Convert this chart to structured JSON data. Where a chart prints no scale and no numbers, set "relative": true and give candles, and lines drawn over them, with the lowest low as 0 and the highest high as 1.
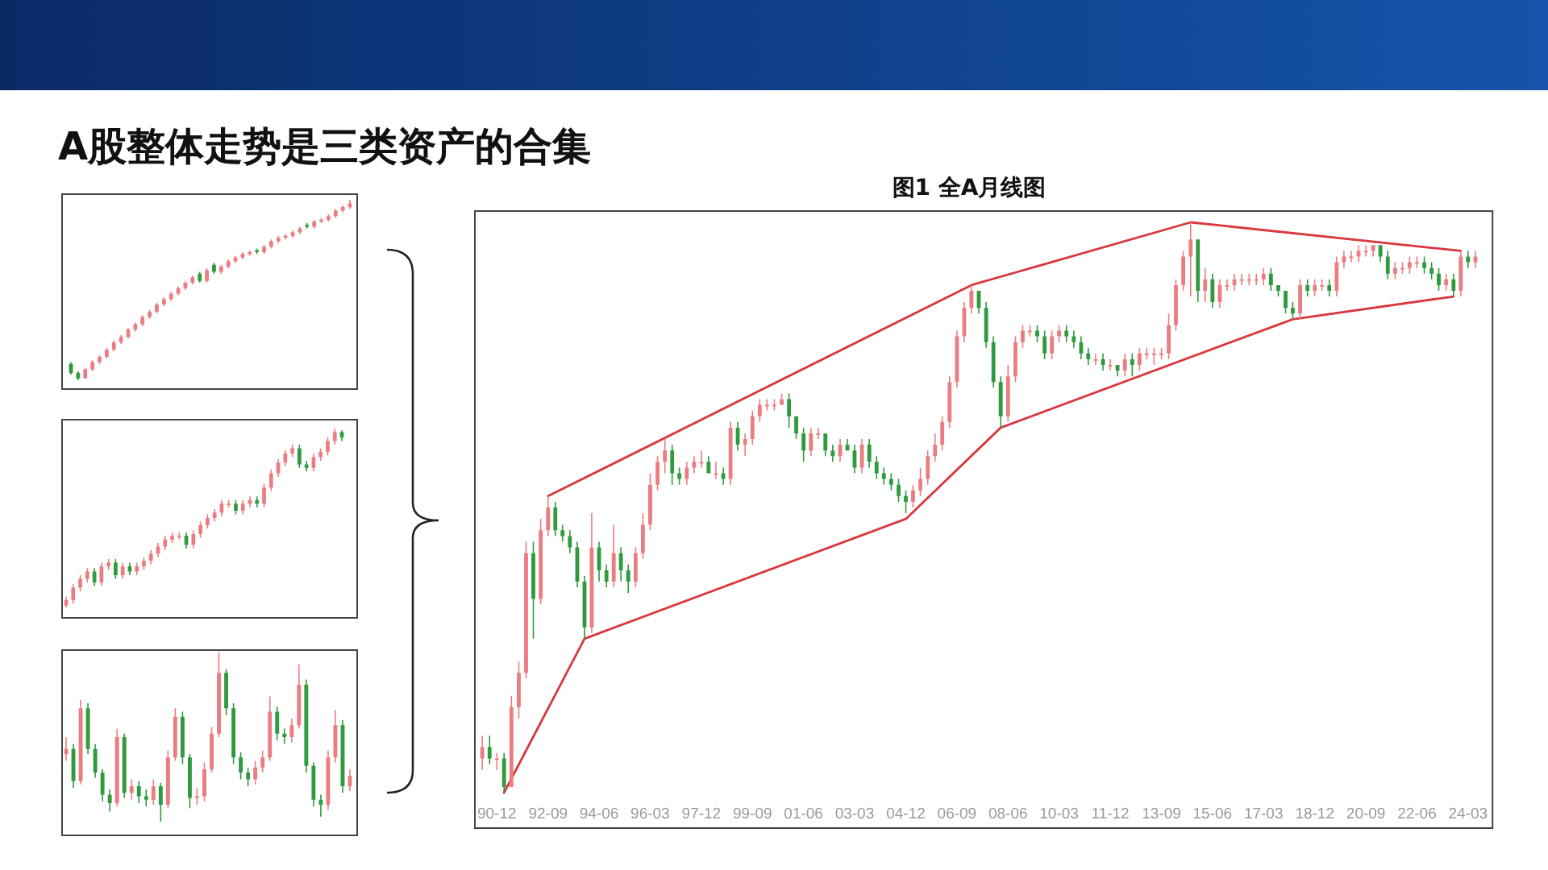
{
  "chart_data": [
    {
      "type": "candlestick",
      "title": "A股整体走势是三类资产的合集",
      "relative": true,
      "categories": [
        null,
        null,
        null,
        null,
        null,
        null,
        null,
        null,
        null,
        null,
        null,
        null,
        null,
        null,
        null,
        null,
        null,
        null,
        null,
        null,
        null,
        null,
        null,
        null,
        null,
        null,
        null,
        null,
        null,
        null,
        null,
        null,
        null,
        null,
        null,
        null,
        null,
        null,
        null,
        null
      ],
      "ohlc": [
        [
          0.09,
          0.1,
          0.03,
          0.04
        ],
        [
          0.04,
          0.05,
          0,
          0.01
        ],
        [
          0.01,
          0.07,
          0.01,
          0.06
        ],
        [
          0.06,
          0.11,
          0.05,
          0.1
        ],
        [
          0.1,
          0.14,
          0.09,
          0.13
        ],
        [
          0.13,
          0.18,
          0.12,
          0.17
        ],
        [
          0.17,
          0.22,
          0.16,
          0.21
        ],
        [
          0.21,
          0.25,
          0.2,
          0.24
        ],
        [
          0.24,
          0.29,
          0.23,
          0.28
        ],
        [
          0.28,
          0.32,
          0.27,
          0.31
        ],
        [
          0.31,
          0.36,
          0.3,
          0.35
        ],
        [
          0.35,
          0.39,
          0.34,
          0.38
        ],
        [
          0.38,
          0.43,
          0.37,
          0.42
        ],
        [
          0.42,
          0.46,
          0.41,
          0.45
        ],
        [
          0.45,
          0.49,
          0.44,
          0.48
        ],
        [
          0.48,
          0.52,
          0.47,
          0.51
        ],
        [
          0.51,
          0.55,
          0.5,
          0.54
        ],
        [
          0.54,
          0.58,
          0.53,
          0.57
        ],
        [
          0.59,
          0.6,
          0.54,
          0.55
        ],
        [
          0.55,
          0.62,
          0.54,
          0.61
        ],
        [
          0.64,
          0.65,
          0.59,
          0.6
        ],
        [
          0.6,
          0.64,
          0.59,
          0.63
        ],
        [
          0.63,
          0.67,
          0.62,
          0.66
        ],
        [
          0.66,
          0.69,
          0.65,
          0.68
        ],
        [
          0.68,
          0.71,
          0.67,
          0.7
        ],
        [
          0.7,
          0.72,
          0.69,
          0.71
        ],
        [
          0.72,
          0.73,
          0.7,
          0.71
        ],
        [
          0.71,
          0.75,
          0.7,
          0.74
        ],
        [
          0.74,
          0.78,
          0.73,
          0.77
        ],
        [
          0.77,
          0.8,
          0.76,
          0.79
        ],
        [
          0.79,
          0.81,
          0.78,
          0.8
        ],
        [
          0.8,
          0.83,
          0.79,
          0.82
        ],
        [
          0.82,
          0.85,
          0.81,
          0.84
        ],
        [
          0.86,
          0.87,
          0.84,
          0.85
        ],
        [
          0.85,
          0.89,
          0.84,
          0.88
        ],
        [
          0.88,
          0.9,
          0.87,
          0.89
        ],
        [
          0.89,
          0.92,
          0.88,
          0.91
        ],
        [
          0.91,
          0.95,
          0.9,
          0.94
        ],
        [
          0.94,
          0.97,
          0.93,
          0.96
        ],
        [
          0.96,
          1,
          0.95,
          0.98
        ]
      ]
    },
    {
      "type": "candlestick",
      "relative": true,
      "categories": [
        null,
        null,
        null,
        null,
        null,
        null,
        null,
        null,
        null,
        null,
        null,
        null,
        null,
        null,
        null,
        null,
        null,
        null,
        null,
        null,
        null,
        null,
        null,
        null,
        null,
        null,
        null,
        null,
        null,
        null,
        null,
        null,
        null,
        null,
        null,
        null,
        null,
        null,
        null,
        null
      ],
      "ohlc": [
        [
          0.01,
          0.06,
          0,
          0.04
        ],
        [
          0.04,
          0.13,
          0.02,
          0.11
        ],
        [
          0.11,
          0.18,
          0.09,
          0.16
        ],
        [
          0.16,
          0.22,
          0.14,
          0.2
        ],
        [
          0.2,
          0.22,
          0.12,
          0.14
        ],
        [
          0.14,
          0.25,
          0.12,
          0.23
        ],
        [
          0.23,
          0.27,
          0.21,
          0.25
        ],
        [
          0.25,
          0.27,
          0.16,
          0.18
        ],
        [
          0.18,
          0.25,
          0.16,
          0.23
        ],
        [
          0.23,
          0.25,
          0.18,
          0.2
        ],
        [
          0.2,
          0.25,
          0.18,
          0.23
        ],
        [
          0.23,
          0.28,
          0.21,
          0.26
        ],
        [
          0.26,
          0.32,
          0.24,
          0.3
        ],
        [
          0.3,
          0.36,
          0.28,
          0.34
        ],
        [
          0.34,
          0.4,
          0.32,
          0.38
        ],
        [
          0.38,
          0.42,
          0.36,
          0.4
        ],
        [
          0.4,
          0.42,
          0.38,
          0.4
        ],
        [
          0.4,
          0.42,
          0.33,
          0.35
        ],
        [
          0.35,
          0.43,
          0.33,
          0.41
        ],
        [
          0.41,
          0.48,
          0.39,
          0.46
        ],
        [
          0.46,
          0.52,
          0.44,
          0.5
        ],
        [
          0.5,
          0.55,
          0.48,
          0.53
        ],
        [
          0.53,
          0.6,
          0.51,
          0.58
        ],
        [
          0.58,
          0.6,
          0.56,
          0.58
        ],
        [
          0.58,
          0.6,
          0.52,
          0.54
        ],
        [
          0.54,
          0.6,
          0.52,
          0.58
        ],
        [
          0.58,
          0.62,
          0.56,
          0.6
        ],
        [
          0.6,
          0.62,
          0.56,
          0.58
        ],
        [
          0.58,
          0.69,
          0.56,
          0.67
        ],
        [
          0.67,
          0.77,
          0.65,
          0.75
        ],
        [
          0.75,
          0.83,
          0.73,
          0.81
        ],
        [
          0.81,
          0.88,
          0.79,
          0.86
        ],
        [
          0.86,
          0.91,
          0.84,
          0.89
        ],
        [
          0.89,
          0.91,
          0.78,
          0.8
        ],
        [
          0.8,
          0.82,
          0.76,
          0.78
        ],
        [
          0.78,
          0.86,
          0.76,
          0.84
        ],
        [
          0.84,
          0.89,
          0.82,
          0.87
        ],
        [
          0.87,
          0.95,
          0.85,
          0.93
        ],
        [
          0.93,
          1,
          0.91,
          0.98
        ],
        [
          0.98,
          0.99,
          0.93,
          0.95
        ]
      ]
    },
    {
      "type": "candlestick",
      "relative": true,
      "categories": [
        null,
        null,
        null,
        null,
        null,
        null,
        null,
        null,
        null,
        null,
        null,
        null,
        null,
        null,
        null,
        null,
        null,
        null,
        null,
        null,
        null,
        null,
        null,
        null,
        null,
        null,
        null,
        null,
        null,
        null,
        null,
        null,
        null,
        null,
        null,
        null,
        null,
        null,
        null,
        null
      ],
      "ohlc": [
        [
          0.4,
          0.5,
          0.36,
          0.43
        ],
        [
          0.43,
          0.46,
          0.2,
          0.24
        ],
        [
          0.24,
          0.72,
          0.22,
          0.67
        ],
        [
          0.67,
          0.7,
          0.4,
          0.43
        ],
        [
          0.43,
          0.46,
          0.26,
          0.29
        ],
        [
          0.29,
          0.31,
          0.12,
          0.16
        ],
        [
          0.16,
          0.19,
          0.06,
          0.11
        ],
        [
          0.11,
          0.55,
          0.09,
          0.5
        ],
        [
          0.5,
          0.52,
          0.14,
          0.17
        ],
        [
          0.17,
          0.25,
          0.13,
          0.21
        ],
        [
          0.21,
          0.24,
          0.11,
          0.15
        ],
        [
          0.15,
          0.19,
          0.09,
          0.13
        ],
        [
          0.13,
          0.25,
          0.1,
          0.21
        ],
        [
          0.21,
          0.23,
          0,
          0.1
        ],
        [
          0.1,
          0.42,
          0.08,
          0.38
        ],
        [
          0.38,
          0.67,
          0.36,
          0.62
        ],
        [
          0.62,
          0.65,
          0.34,
          0.38
        ],
        [
          0.38,
          0.4,
          0.08,
          0.14
        ],
        [
          0.14,
          0.2,
          0.1,
          0.15
        ],
        [
          0.15,
          0.35,
          0.12,
          0.31
        ],
        [
          0.31,
          0.56,
          0.29,
          0.52
        ],
        [
          0.52,
          1,
          0.5,
          0.88
        ],
        [
          0.88,
          0.9,
          0.63,
          0.67
        ],
        [
          0.67,
          0.7,
          0.34,
          0.38
        ],
        [
          0.38,
          0.41,
          0.25,
          0.29
        ],
        [
          0.29,
          0.32,
          0.21,
          0.25
        ],
        [
          0.25,
          0.36,
          0.22,
          0.32
        ],
        [
          0.32,
          0.42,
          0.29,
          0.38
        ],
        [
          0.38,
          0.74,
          0.36,
          0.65
        ],
        [
          0.65,
          0.68,
          0.48,
          0.52
        ],
        [
          0.52,
          0.55,
          0.46,
          0.5
        ],
        [
          0.5,
          0.61,
          0.47,
          0.57
        ],
        [
          0.57,
          0.93,
          0.55,
          0.81
        ],
        [
          0.81,
          0.84,
          0.29,
          0.33
        ],
        [
          0.33,
          0.35,
          0.09,
          0.13
        ],
        [
          0.13,
          0.16,
          0.03,
          0.1
        ],
        [
          0.1,
          0.42,
          0.07,
          0.38
        ],
        [
          0.38,
          0.66,
          0.35,
          0.57
        ],
        [
          0.57,
          0.6,
          0.17,
          0.21
        ],
        [
          0.21,
          0.31,
          0.18,
          0.27
        ]
      ]
    },
    {
      "type": "candlestick",
      "title": "图1 全A月线图",
      "relative": true,
      "xlim": [
        "1990-03",
        "2025-01"
      ],
      "xticks": [
        {
          "value": "1990-12",
          "label": "90-12"
        },
        {
          "value": "1992-09",
          "label": "92-09"
        },
        {
          "value": "1994-06",
          "label": "94-06"
        },
        {
          "value": "1996-03",
          "label": "96-03"
        },
        {
          "value": "1997-12",
          "label": "97-12"
        },
        {
          "value": "1999-09",
          "label": "99-09"
        },
        {
          "value": "2001-06",
          "label": "01-06"
        },
        {
          "value": "2003-03",
          "label": "03-03"
        },
        {
          "value": "2004-12",
          "label": "04-12"
        },
        {
          "value": "2006-09",
          "label": "06-09"
        },
        {
          "value": "2008-06",
          "label": "08-06"
        },
        {
          "value": "2010-03",
          "label": "10-03"
        },
        {
          "value": "2011-12",
          "label": "11-12"
        },
        {
          "value": "2013-09",
          "label": "13-09"
        },
        {
          "value": "2015-06",
          "label": "15-06"
        },
        {
          "value": "2017-03",
          "label": "17-03"
        },
        {
          "value": "2018-12",
          "label": "18-12"
        },
        {
          "value": "2020-09",
          "label": "20-09"
        },
        {
          "value": "2022-06",
          "label": "22-06"
        },
        {
          "value": "2024-03",
          "label": "24-03"
        }
      ],
      "x": [
        "1990-06",
        "1990-09",
        "1990-12",
        "1991-03",
        "1991-06",
        "1991-09",
        "1991-12",
        "1992-03",
        "1992-06",
        "1992-09",
        "1992-12",
        "1993-03",
        "1993-06",
        "1993-09",
        "1993-12",
        "1994-03",
        "1994-06",
        "1994-09",
        "1994-12",
        "1995-03",
        "1995-06",
        "1995-09",
        "1995-12",
        "1996-03",
        "1996-06",
        "1996-09",
        "1996-12",
        "1997-03",
        "1997-06",
        "1997-09",
        "1997-12",
        "1998-03",
        "1998-06",
        "1998-09",
        "1998-12",
        "1999-03",
        "1999-06",
        "1999-09",
        "1999-12",
        "2000-03",
        "2000-06",
        "2000-09",
        "2000-12",
        "2001-03",
        "2001-06",
        "2001-09",
        "2001-12",
        "2002-03",
        "2002-06",
        "2002-09",
        "2002-12",
        "2003-03",
        "2003-06",
        "2003-09",
        "2003-12",
        "2004-03",
        "2004-06",
        "2004-09",
        "2004-12",
        "2005-03",
        "2005-06",
        "2005-09",
        "2005-12",
        "2006-03",
        "2006-06",
        "2006-09",
        "2006-12",
        "2007-03",
        "2007-06",
        "2007-09",
        "2007-12",
        "2008-03",
        "2008-06",
        "2008-09",
        "2008-12",
        "2009-03",
        "2009-06",
        "2009-09",
        "2009-12",
        "2010-03",
        "2010-06",
        "2010-09",
        "2010-12",
        "2011-03",
        "2011-06",
        "2011-09",
        "2011-12",
        "2012-03",
        "2012-06",
        "2012-09",
        "2012-12",
        "2013-03",
        "2013-06",
        "2013-09",
        "2013-12",
        "2014-03",
        "2014-06",
        "2014-09",
        "2014-12",
        "2015-03",
        "2015-06",
        "2015-09",
        "2015-12",
        "2016-03",
        "2016-06",
        "2016-09",
        "2016-12",
        "2017-03",
        "2017-06",
        "2017-09",
        "2017-12",
        "2018-03",
        "2018-06",
        "2018-09",
        "2018-12",
        "2019-03",
        "2019-06",
        "2019-09",
        "2019-12",
        "2020-03",
        "2020-06",
        "2020-09",
        "2020-12",
        "2021-03",
        "2021-06",
        "2021-09",
        "2021-12",
        "2022-03",
        "2022-06",
        "2022-09",
        "2022-12",
        "2023-03",
        "2023-06",
        "2023-09",
        "2023-12",
        "2024-03",
        "2024-06"
      ],
      "ohlc": [
        [
          0.06,
          0.1,
          0.04,
          0.08
        ],
        [
          0.08,
          0.1,
          0.05,
          0.06
        ],
        [
          0.06,
          0.07,
          0.04,
          0.06
        ],
        [
          0.06,
          0.07,
          0,
          0.01
        ],
        [
          0.01,
          0.17,
          0.01,
          0.15
        ],
        [
          0.15,
          0.23,
          0.13,
          0.21
        ],
        [
          0.21,
          0.44,
          0.2,
          0.42
        ],
        [
          0.42,
          0.44,
          0.27,
          0.34
        ],
        [
          0.34,
          0.48,
          0.33,
          0.46
        ],
        [
          0.46,
          0.52,
          0.45,
          0.5
        ],
        [
          0.5,
          0.51,
          0.45,
          0.46
        ],
        [
          0.46,
          0.47,
          0.44,
          0.45
        ],
        [
          0.45,
          0.46,
          0.42,
          0.43
        ],
        [
          0.43,
          0.44,
          0.36,
          0.37
        ],
        [
          0.37,
          0.38,
          0.27,
          0.29
        ],
        [
          0.29,
          0.49,
          0.28,
          0.43
        ],
        [
          0.43,
          0.44,
          0.37,
          0.39
        ],
        [
          0.39,
          0.4,
          0.36,
          0.37
        ],
        [
          0.37,
          0.47,
          0.36,
          0.42
        ],
        [
          0.42,
          0.43,
          0.37,
          0.39
        ],
        [
          0.39,
          0.4,
          0.35,
          0.37
        ],
        [
          0.37,
          0.43,
          0.36,
          0.42
        ],
        [
          0.42,
          0.49,
          0.41,
          0.47
        ],
        [
          0.47,
          0.56,
          0.46,
          0.54
        ],
        [
          0.54,
          0.59,
          0.53,
          0.58
        ],
        [
          0.58,
          0.62,
          0.56,
          0.6
        ],
        [
          0.6,
          0.61,
          0.54,
          0.56
        ],
        [
          0.56,
          0.57,
          0.54,
          0.55
        ],
        [
          0.55,
          0.58,
          0.54,
          0.57
        ],
        [
          0.57,
          0.59,
          0.56,
          0.58
        ],
        [
          0.58,
          0.6,
          0.57,
          0.58
        ],
        [
          0.58,
          0.59,
          0.56,
          0.56
        ],
        [
          0.56,
          0.58,
          0.55,
          0.56
        ],
        [
          0.56,
          0.57,
          0.54,
          0.55
        ],
        [
          0.55,
          0.65,
          0.54,
          0.64
        ],
        [
          0.64,
          0.65,
          0.6,
          0.61
        ],
        [
          0.61,
          0.63,
          0.59,
          0.62
        ],
        [
          0.62,
          0.67,
          0.61,
          0.66
        ],
        [
          0.66,
          0.69,
          0.65,
          0.68
        ],
        [
          0.68,
          0.69,
          0.67,
          0.68
        ],
        [
          0.68,
          0.69,
          0.67,
          0.68
        ],
        [
          0.68,
          0.7,
          0.68,
          0.69
        ],
        [
          0.69,
          0.7,
          0.64,
          0.66
        ],
        [
          0.66,
          0.66,
          0.62,
          0.63
        ],
        [
          0.63,
          0.64,
          0.58,
          0.6
        ],
        [
          0.6,
          0.64,
          0.59,
          0.63
        ],
        [
          0.63,
          0.64,
          0.62,
          0.63
        ],
        [
          0.63,
          0.63,
          0.59,
          0.6
        ],
        [
          0.6,
          0.61,
          0.58,
          0.59
        ],
        [
          0.59,
          0.62,
          0.58,
          0.61
        ],
        [
          0.61,
          0.62,
          0.6,
          0.6
        ],
        [
          0.6,
          0.61,
          0.56,
          0.57
        ],
        [
          0.57,
          0.62,
          0.56,
          0.61
        ],
        [
          0.61,
          0.62,
          0.57,
          0.58
        ],
        [
          0.58,
          0.59,
          0.55,
          0.56
        ],
        [
          0.56,
          0.57,
          0.54,
          0.55
        ],
        [
          0.55,
          0.56,
          0.53,
          0.54
        ],
        [
          0.54,
          0.55,
          0.51,
          0.52
        ],
        [
          0.52,
          0.53,
          0.49,
          0.51
        ],
        [
          0.51,
          0.54,
          0.5,
          0.53
        ],
        [
          0.53,
          0.57,
          0.52,
          0.55
        ],
        [
          0.55,
          0.6,
          0.54,
          0.59
        ],
        [
          0.59,
          0.63,
          0.58,
          0.61
        ],
        [
          0.61,
          0.66,
          0.6,
          0.65
        ],
        [
          0.65,
          0.73,
          0.64,
          0.72
        ],
        [
          0.72,
          0.81,
          0.71,
          0.8
        ],
        [
          0.8,
          0.86,
          0.79,
          0.85
        ],
        [
          0.85,
          0.89,
          0.84,
          0.88
        ],
        [
          0.88,
          0.88,
          0.84,
          0.85
        ],
        [
          0.85,
          0.86,
          0.78,
          0.79
        ],
        [
          0.79,
          0.8,
          0.71,
          0.72
        ],
        [
          0.72,
          0.73,
          0.64,
          0.66
        ],
        [
          0.66,
          0.75,
          0.65,
          0.73
        ],
        [
          0.73,
          0.8,
          0.72,
          0.79
        ],
        [
          0.79,
          0.82,
          0.78,
          0.81
        ],
        [
          0.81,
          0.82,
          0.8,
          0.81
        ],
        [
          0.81,
          0.82,
          0.79,
          0.8
        ],
        [
          0.8,
          0.81,
          0.76,
          0.77
        ],
        [
          0.77,
          0.81,
          0.76,
          0.8
        ],
        [
          0.8,
          0.82,
          0.79,
          0.81
        ],
        [
          0.81,
          0.82,
          0.79,
          0.8
        ],
        [
          0.8,
          0.81,
          0.78,
          0.79
        ],
        [
          0.79,
          0.8,
          0.76,
          0.77
        ],
        [
          0.77,
          0.78,
          0.75,
          0.76
        ],
        [
          0.76,
          0.77,
          0.75,
          0.76
        ],
        [
          0.76,
          0.77,
          0.74,
          0.75
        ],
        [
          0.75,
          0.76,
          0.74,
          0.75
        ],
        [
          0.75,
          0.75,
          0.73,
          0.74
        ],
        [
          0.74,
          0.77,
          0.73,
          0.76
        ],
        [
          0.76,
          0.77,
          0.73,
          0.75
        ],
        [
          0.75,
          0.78,
          0.74,
          0.77
        ],
        [
          0.77,
          0.78,
          0.76,
          0.77
        ],
        [
          0.77,
          0.78,
          0.75,
          0.77
        ],
        [
          0.77,
          0.78,
          0.76,
          0.77
        ],
        [
          0.77,
          0.84,
          0.76,
          0.82
        ],
        [
          0.82,
          0.9,
          0.81,
          0.89
        ],
        [
          0.89,
          0.95,
          0.88,
          0.94
        ],
        [
          0.94,
          1,
          0.87,
          0.97
        ],
        [
          0.97,
          0.97,
          0.86,
          0.88
        ],
        [
          0.88,
          0.92,
          0.86,
          0.9
        ],
        [
          0.9,
          0.91,
          0.85,
          0.86
        ],
        [
          0.86,
          0.9,
          0.85,
          0.89
        ],
        [
          0.89,
          0.9,
          0.88,
          0.89
        ],
        [
          0.89,
          0.91,
          0.88,
          0.9
        ],
        [
          0.9,
          0.91,
          0.89,
          0.9
        ],
        [
          0.9,
          0.91,
          0.89,
          0.9
        ],
        [
          0.9,
          0.91,
          0.89,
          0.9
        ],
        [
          0.9,
          0.92,
          0.89,
          0.91
        ],
        [
          0.91,
          0.92,
          0.88,
          0.89
        ],
        [
          0.89,
          0.89,
          0.87,
          0.88
        ],
        [
          0.88,
          0.88,
          0.84,
          0.85
        ],
        [
          0.85,
          0.86,
          0.83,
          0.84
        ],
        [
          0.84,
          0.9,
          0.83,
          0.89
        ],
        [
          0.89,
          0.9,
          0.87,
          0.88
        ],
        [
          0.88,
          0.9,
          0.87,
          0.89
        ],
        [
          0.89,
          0.9,
          0.88,
          0.89
        ],
        [
          0.89,
          0.9,
          0.87,
          0.88
        ],
        [
          0.88,
          0.94,
          0.87,
          0.93
        ],
        [
          0.93,
          0.95,
          0.92,
          0.94
        ],
        [
          0.94,
          0.95,
          0.93,
          0.94
        ],
        [
          0.94,
          0.96,
          0.93,
          0.95
        ],
        [
          0.95,
          0.96,
          0.94,
          0.95
        ],
        [
          0.95,
          0.96,
          0.94,
          0.96
        ],
        [
          0.96,
          0.96,
          0.93,
          0.94
        ],
        [
          0.94,
          0.95,
          0.9,
          0.91
        ],
        [
          0.91,
          0.93,
          0.9,
          0.92
        ],
        [
          0.92,
          0.93,
          0.91,
          0.92
        ],
        [
          0.92,
          0.94,
          0.91,
          0.93
        ],
        [
          0.93,
          0.94,
          0.92,
          0.93
        ],
        [
          0.93,
          0.94,
          0.91,
          0.92
        ],
        [
          0.92,
          0.93,
          0.9,
          0.91
        ],
        [
          0.91,
          0.92,
          0.88,
          0.89
        ],
        [
          0.89,
          0.91,
          0.88,
          0.9
        ],
        [
          0.9,
          0.91,
          0.87,
          0.88
        ],
        [
          0.88,
          0.95,
          0.87,
          0.94
        ],
        [
          0.94,
          0.95,
          0.92,
          0.93
        ],
        [
          0.93,
          0.95,
          0.92,
          0.94
        ]
      ],
      "series": [
        {
          "type": "line",
          "color": "#d8383e",
          "x": [
            "1992-09",
            "2007-03",
            "2014-09",
            "2023-12"
          ],
          "values": [
            0.52,
            0.89,
            1,
            0.95
          ]
        },
        {
          "type": "line",
          "color": "#d8383e",
          "x": [
            "1991-03",
            "1993-12",
            "2004-12",
            "2008-03",
            "2018-03",
            "2023-09"
          ],
          "values": [
            0,
            0.27,
            0.48,
            0.64,
            0.83,
            0.87
          ]
        }
      ]
    }
  ]
}
